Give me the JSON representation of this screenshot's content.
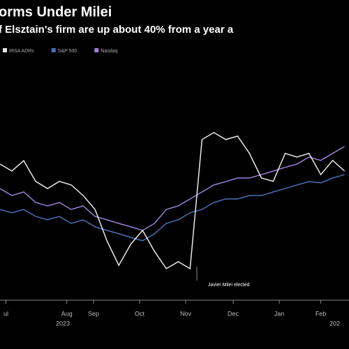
{
  "chart_data": {
    "type": "line",
    "title": "orms Under Milei",
    "subtitle": "f Elsztain's firm are up about 40% from a year a",
    "annotation": "Javier Milei elected",
    "x": [
      0,
      8,
      16,
      24,
      32,
      40,
      48,
      56,
      64,
      72,
      80,
      88,
      96,
      104,
      112,
      120,
      128,
      136,
      144,
      152,
      160,
      168,
      176,
      184,
      192,
      200,
      208,
      216,
      224,
      232
    ],
    "xlim": [
      0,
      235
    ],
    "xticks": [
      {
        "value": 4,
        "label": "ul"
      },
      {
        "value": 45,
        "label": "Aug"
      },
      {
        "value": 63,
        "label": "Sep"
      },
      {
        "value": 94,
        "label": "Oct"
      },
      {
        "value": 125,
        "label": "Nov"
      },
      {
        "value": 157,
        "label": "Dec"
      },
      {
        "value": 188,
        "label": "Jan"
      },
      {
        "value": 216,
        "label": "Feb"
      }
    ],
    "year_labels": [
      "2023",
      "202"
    ],
    "ylim": [
      0,
      100
    ],
    "series": [
      {
        "name": "IRSA ADRs",
        "color": "#e8e8e8",
        "values": [
          52.7,
          50,
          54,
          46,
          43.2,
          46,
          44.6,
          40.5,
          35.1,
          23,
          13.5,
          21.6,
          27,
          18.9,
          12.2,
          14.9,
          12.2,
          62.2,
          64.9,
          62.2,
          63.5,
          56.8,
          47.3,
          46,
          56.8,
          55.4,
          56.8,
          48.6,
          54.1,
          50
        ]
      },
      {
        "name": "S&P 500",
        "color": "#4a6fb5",
        "values": [
          35.1,
          33.8,
          35.1,
          32.4,
          31.1,
          32.4,
          29.7,
          31.1,
          28.4,
          27,
          25.7,
          24.3,
          23,
          25.7,
          29.7,
          31.1,
          33.8,
          35.1,
          37.8,
          39.2,
          39.2,
          40.5,
          40.5,
          41.9,
          43.2,
          44.6,
          45.9,
          45.4,
          47.3,
          48.6
        ]
      },
      {
        "name": "Nasdaq",
        "color": "#9b7fd6",
        "values": [
          43.2,
          40.5,
          41.9,
          37.8,
          36.5,
          37.8,
          35.1,
          36.5,
          32.4,
          31.1,
          29.7,
          28.4,
          27,
          29.7,
          35.1,
          36.5,
          39.2,
          41.9,
          44.6,
          45.9,
          47.3,
          47.3,
          48.6,
          50,
          51.4,
          52.7,
          55.4,
          54.1,
          56.8,
          59.5
        ]
      }
    ]
  }
}
